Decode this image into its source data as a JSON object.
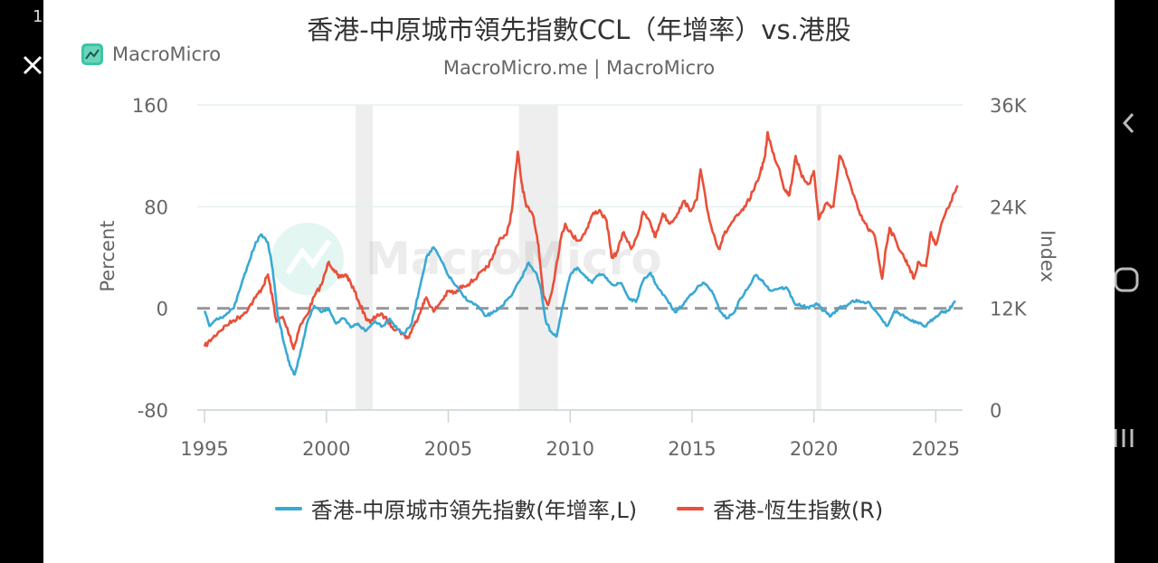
{
  "device": {
    "status_text": "1"
  },
  "chart_card": {
    "brand": "MacroMicro",
    "watermark": "MacroMicro"
  },
  "chart_data": {
    "type": "line",
    "title": "香港-中原城市領先指數CCL（年增率）vs.港股",
    "subtitle": "MacroMicro.me | MacroMicro",
    "x_ticks": [
      "1995",
      "2000",
      "2005",
      "2010",
      "2015",
      "2020",
      "2025"
    ],
    "x_range": [
      1994.7,
      2026.1
    ],
    "y_left": {
      "label": "Percent",
      "ticks": [
        "160",
        "80",
        "0",
        "-80"
      ],
      "range": [
        -80,
        160
      ]
    },
    "y_right": {
      "label": "Index",
      "ticks": [
        "36K",
        "24K",
        "12K",
        "0"
      ],
      "range": [
        0,
        36000
      ]
    },
    "recession_bands": [
      [
        2001.2,
        2001.9
      ],
      [
        2007.9,
        2009.5
      ],
      [
        2020.1,
        2020.3
      ]
    ],
    "zero_line": 0,
    "series": [
      {
        "name": "香港-中原城市領先指數(年增率,L)",
        "axis": "left",
        "color": "#39a9d4",
        "points": [
          [
            1995.0,
            -2
          ],
          [
            1995.2,
            -14
          ],
          [
            1995.5,
            -8
          ],
          [
            1995.8,
            -6
          ],
          [
            1996.2,
            0
          ],
          [
            1996.5,
            18
          ],
          [
            1996.8,
            35
          ],
          [
            1997.1,
            52
          ],
          [
            1997.35,
            58
          ],
          [
            1997.6,
            52
          ],
          [
            1997.8,
            30
          ],
          [
            1998.0,
            -5
          ],
          [
            1998.3,
            -30
          ],
          [
            1998.5,
            -45
          ],
          [
            1998.7,
            -52
          ],
          [
            1998.9,
            -38
          ],
          [
            1999.2,
            -12
          ],
          [
            1999.5,
            2
          ],
          [
            1999.8,
            -3
          ],
          [
            2000.1,
            0
          ],
          [
            2000.4,
            -12
          ],
          [
            2000.7,
            -8
          ],
          [
            2001.0,
            -15
          ],
          [
            2001.3,
            -12
          ],
          [
            2001.6,
            -18
          ],
          [
            2002.0,
            -10
          ],
          [
            2002.3,
            -14
          ],
          [
            2002.6,
            -8
          ],
          [
            2002.9,
            -16
          ],
          [
            2003.2,
            -20
          ],
          [
            2003.5,
            -12
          ],
          [
            2003.8,
            14
          ],
          [
            2004.1,
            40
          ],
          [
            2004.4,
            48
          ],
          [
            2004.7,
            38
          ],
          [
            2005.0,
            26
          ],
          [
            2005.3,
            18
          ],
          [
            2005.6,
            10
          ],
          [
            2005.9,
            5
          ],
          [
            2006.2,
            2
          ],
          [
            2006.5,
            -6
          ],
          [
            2006.8,
            -4
          ],
          [
            2007.2,
            2
          ],
          [
            2007.6,
            10
          ],
          [
            2008.0,
            24
          ],
          [
            2008.3,
            36
          ],
          [
            2008.6,
            28
          ],
          [
            2008.8,
            15
          ],
          [
            2009.0,
            -10
          ],
          [
            2009.2,
            -18
          ],
          [
            2009.45,
            -22
          ],
          [
            2009.7,
            2
          ],
          [
            2010.0,
            26
          ],
          [
            2010.3,
            32
          ],
          [
            2010.6,
            26
          ],
          [
            2010.9,
            20
          ],
          [
            2011.2,
            27
          ],
          [
            2011.5,
            24
          ],
          [
            2011.8,
            18
          ],
          [
            2012.1,
            20
          ],
          [
            2012.4,
            8
          ],
          [
            2012.7,
            5
          ],
          [
            2013.0,
            22
          ],
          [
            2013.3,
            28
          ],
          [
            2013.6,
            16
          ],
          [
            2014.0,
            6
          ],
          [
            2014.3,
            -3
          ],
          [
            2014.6,
            2
          ],
          [
            2014.9,
            10
          ],
          [
            2015.2,
            16
          ],
          [
            2015.5,
            20
          ],
          [
            2015.8,
            14
          ],
          [
            2016.1,
            0
          ],
          [
            2016.4,
            -8
          ],
          [
            2016.7,
            -4
          ],
          [
            2017.0,
            8
          ],
          [
            2017.3,
            16
          ],
          [
            2017.6,
            26
          ],
          [
            2017.9,
            22
          ],
          [
            2018.2,
            14
          ],
          [
            2018.6,
            16
          ],
          [
            2018.9,
            16
          ],
          [
            2019.2,
            4
          ],
          [
            2019.5,
            2
          ],
          [
            2019.8,
            0
          ],
          [
            2020.1,
            4
          ],
          [
            2020.4,
            -2
          ],
          [
            2020.7,
            -6
          ],
          [
            2021.0,
            0
          ],
          [
            2021.3,
            2
          ],
          [
            2021.6,
            6
          ],
          [
            2021.9,
            5
          ],
          [
            2022.3,
            4
          ],
          [
            2022.7,
            -6
          ],
          [
            2023.0,
            -14
          ],
          [
            2023.3,
            -2
          ],
          [
            2023.6,
            -5
          ],
          [
            2024.0,
            -10
          ],
          [
            2024.3,
            -12
          ],
          [
            2024.6,
            -14
          ],
          [
            2024.9,
            -8
          ],
          [
            2025.2,
            -3
          ],
          [
            2025.5,
            -2
          ],
          [
            2025.8,
            6
          ]
        ]
      },
      {
        "name": "香港-恆生指數(R)",
        "axis": "right",
        "color": "#e8503a",
        "points": [
          [
            1995.0,
            7500
          ],
          [
            1995.3,
            8400
          ],
          [
            1995.6,
            9300
          ],
          [
            1995.9,
            10000
          ],
          [
            1996.2,
            10600
          ],
          [
            1996.5,
            11100
          ],
          [
            1996.8,
            12000
          ],
          [
            1997.1,
            13300
          ],
          [
            1997.4,
            14600
          ],
          [
            1997.6,
            16000
          ],
          [
            1997.8,
            13000
          ],
          [
            1997.95,
            10400
          ],
          [
            1998.2,
            11000
          ],
          [
            1998.5,
            8800
          ],
          [
            1998.65,
            7200
          ],
          [
            1998.9,
            9800
          ],
          [
            1999.2,
            11200
          ],
          [
            1999.5,
            13400
          ],
          [
            1999.8,
            14800
          ],
          [
            2000.1,
            17500
          ],
          [
            2000.3,
            16600
          ],
          [
            2000.5,
            15600
          ],
          [
            2000.8,
            16000
          ],
          [
            2001.0,
            15000
          ],
          [
            2001.3,
            13000
          ],
          [
            2001.6,
            11000
          ],
          [
            2001.8,
            10300
          ],
          [
            2002.1,
            11300
          ],
          [
            2002.4,
            11000
          ],
          [
            2002.7,
            9800
          ],
          [
            2002.95,
            9500
          ],
          [
            2003.2,
            8800
          ],
          [
            2003.35,
            8500
          ],
          [
            2003.6,
            10000
          ],
          [
            2003.9,
            12000
          ],
          [
            2004.1,
            13300
          ],
          [
            2004.4,
            11600
          ],
          [
            2004.7,
            12800
          ],
          [
            2005.0,
            14000
          ],
          [
            2005.3,
            13800
          ],
          [
            2005.6,
            14700
          ],
          [
            2005.9,
            15000
          ],
          [
            2006.2,
            15800
          ],
          [
            2006.5,
            16500
          ],
          [
            2006.8,
            17800
          ],
          [
            2007.1,
            20200
          ],
          [
            2007.4,
            20700
          ],
          [
            2007.6,
            23400
          ],
          [
            2007.85,
            30500
          ],
          [
            2008.0,
            27000
          ],
          [
            2008.2,
            24000
          ],
          [
            2008.5,
            22800
          ],
          [
            2008.7,
            19500
          ],
          [
            2008.9,
            13500
          ],
          [
            2009.1,
            12400
          ],
          [
            2009.3,
            14800
          ],
          [
            2009.6,
            20000
          ],
          [
            2009.8,
            22000
          ],
          [
            2010.1,
            20500
          ],
          [
            2010.4,
            20000
          ],
          [
            2010.7,
            21500
          ],
          [
            2010.9,
            23000
          ],
          [
            2011.2,
            23600
          ],
          [
            2011.5,
            22300
          ],
          [
            2011.7,
            18000
          ],
          [
            2011.9,
            18500
          ],
          [
            2012.2,
            21000
          ],
          [
            2012.5,
            19000
          ],
          [
            2012.8,
            21000
          ],
          [
            2013.0,
            23400
          ],
          [
            2013.3,
            22000
          ],
          [
            2013.5,
            20400
          ],
          [
            2013.8,
            23200
          ],
          [
            2014.1,
            22000
          ],
          [
            2014.4,
            23200
          ],
          [
            2014.7,
            24700
          ],
          [
            2014.9,
            23500
          ],
          [
            2015.2,
            24800
          ],
          [
            2015.35,
            28400
          ],
          [
            2015.6,
            24000
          ],
          [
            2015.8,
            21500
          ],
          [
            2016.1,
            19000
          ],
          [
            2016.3,
            20600
          ],
          [
            2016.6,
            22000
          ],
          [
            2016.9,
            23000
          ],
          [
            2017.2,
            24000
          ],
          [
            2017.5,
            25800
          ],
          [
            2017.8,
            28000
          ],
          [
            2018.0,
            30000
          ],
          [
            2018.1,
            32800
          ],
          [
            2018.3,
            30500
          ],
          [
            2018.6,
            28300
          ],
          [
            2018.8,
            26000
          ],
          [
            2019.0,
            25400
          ],
          [
            2019.25,
            30000
          ],
          [
            2019.5,
            27500
          ],
          [
            2019.8,
            26700
          ],
          [
            2020.0,
            28200
          ],
          [
            2020.2,
            22500
          ],
          [
            2020.5,
            24400
          ],
          [
            2020.8,
            24000
          ],
          [
            2021.05,
            30000
          ],
          [
            2021.3,
            28500
          ],
          [
            2021.6,
            25500
          ],
          [
            2021.9,
            23000
          ],
          [
            2022.2,
            21500
          ],
          [
            2022.5,
            20500
          ],
          [
            2022.8,
            15500
          ],
          [
            2022.95,
            19000
          ],
          [
            2023.1,
            21500
          ],
          [
            2023.4,
            19700
          ],
          [
            2023.7,
            18000
          ],
          [
            2023.9,
            17000
          ],
          [
            2024.1,
            15500
          ],
          [
            2024.3,
            17500
          ],
          [
            2024.6,
            17000
          ],
          [
            2024.8,
            21000
          ],
          [
            2025.0,
            19500
          ],
          [
            2025.3,
            22500
          ],
          [
            2025.6,
            24500
          ],
          [
            2025.9,
            26500
          ]
        ]
      }
    ],
    "legend": [
      "香港-中原城市領先指數(年增率,L)",
      "香港-恆生指數(R)"
    ]
  }
}
